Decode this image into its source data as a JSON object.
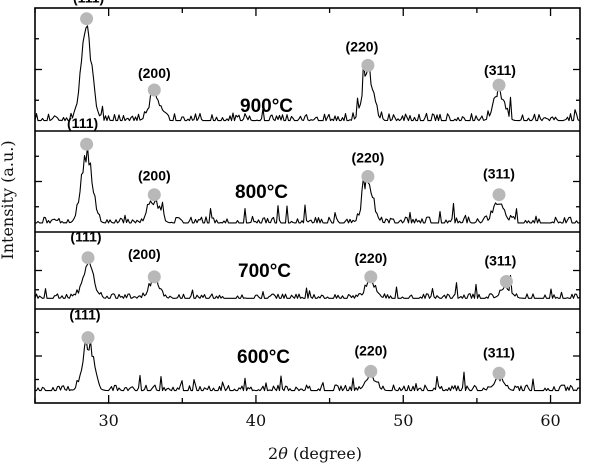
{
  "chart_data": {
    "type": "line",
    "title": "",
    "xlabel_prefix": "2",
    "xlabel_var": "θ",
    "xlabel_suffix": " (degree)",
    "ylabel": "Intensity (a.u.)",
    "xlim": [
      25,
      62
    ],
    "xticks": [
      30,
      40,
      50,
      60
    ],
    "grid": false,
    "legend": "none",
    "series": [
      {
        "name": "900°C",
        "baseline": 0.06,
        "peaks": [
          {
            "label": "(111)",
            "x": 28.5,
            "h": 0.78
          },
          {
            "label": "(200)",
            "x": 33.1,
            "h": 0.2
          },
          {
            "label": "(220)",
            "x": 47.6,
            "h": 0.4
          },
          {
            "label": "(311)",
            "x": 56.5,
            "h": 0.24
          }
        ]
      },
      {
        "name": "800°C",
        "baseline": 0.06,
        "peaks": [
          {
            "label": "(111)",
            "x": 28.5,
            "h": 0.72
          },
          {
            "label": "(200)",
            "x": 33.1,
            "h": 0.22
          },
          {
            "label": "(220)",
            "x": 47.6,
            "h": 0.4
          },
          {
            "label": "(311)",
            "x": 56.5,
            "h": 0.22
          }
        ]
      },
      {
        "name": "700°C",
        "baseline": 0.1,
        "peaks": [
          {
            "label": "(111)",
            "x": 28.6,
            "h": 0.45
          },
          {
            "label": "(200)",
            "x": 33.1,
            "h": 0.2
          },
          {
            "label": "(220)",
            "x": 47.8,
            "h": 0.2
          },
          {
            "label": "(311)",
            "x": 57.0,
            "h": 0.14
          }
        ]
      },
      {
        "name": "600°C",
        "baseline": 0.1,
        "peaks": [
          {
            "label": "(111)",
            "x": 28.6,
            "h": 0.5
          },
          {
            "label": "(220)",
            "x": 47.8,
            "h": 0.14
          },
          {
            "label": "(311)",
            "x": 56.5,
            "h": 0.12
          }
        ]
      }
    ]
  }
}
